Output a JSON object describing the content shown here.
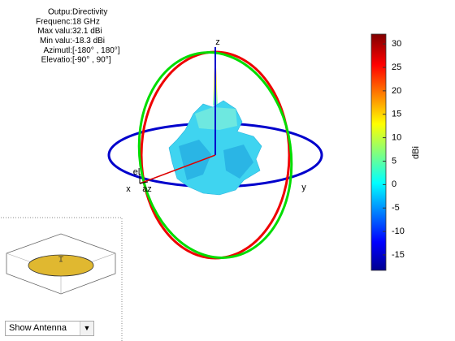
{
  "chart_data": {
    "type": "pattern3d",
    "info": [
      {
        "label": "Outpu:",
        "value": "Directivity"
      },
      {
        "label": "Frequenc:",
        "value": "18 GHz"
      },
      {
        "label": "Max valu:",
        "value": "32.1 dBi"
      },
      {
        "label": "Min valu:",
        "value": "-18.3 dBi"
      },
      {
        "label": "Azimutl:",
        "value": "[-180° , 180°]"
      },
      {
        "label": "Elevatio:",
        "value": "[-90° , 90°]"
      }
    ],
    "axis_labels": {
      "x": "x",
      "y": "y",
      "z": "z",
      "az": "az",
      "el": "el"
    },
    "colorbar": {
      "label": "dBi",
      "clim": [
        -18.3,
        32.1
      ],
      "cticks": [
        -15,
        -10,
        -5,
        0,
        5,
        10,
        15,
        20,
        25,
        30
      ]
    }
  },
  "controls": {
    "dropdown": "Show Antenna"
  }
}
